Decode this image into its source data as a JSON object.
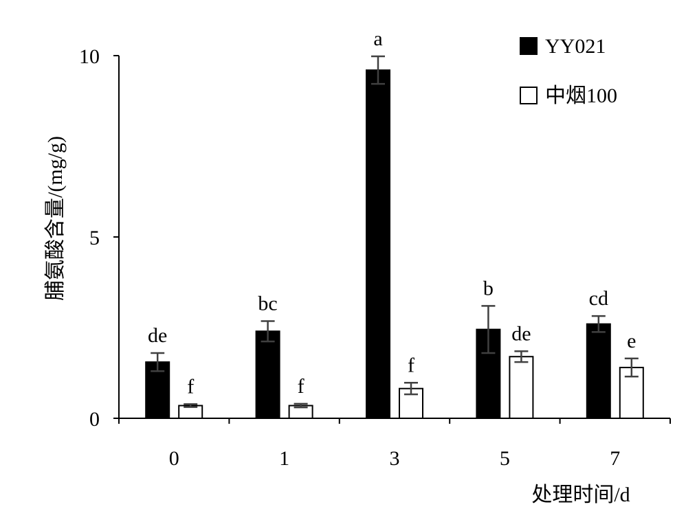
{
  "chart_data": {
    "type": "bar",
    "categories": [
      "0",
      "1",
      "3",
      "5",
      "7"
    ],
    "series": [
      {
        "name": "YY021",
        "color": "#000000",
        "fill": "solid",
        "values": [
          1.55,
          2.4,
          9.6,
          2.45,
          2.6
        ],
        "errors": [
          0.25,
          0.28,
          0.38,
          0.65,
          0.22
        ],
        "significance": [
          "de",
          "bc",
          "a",
          "b",
          "cd"
        ]
      },
      {
        "name": "中烟100",
        "color": "#000000",
        "fill": "open",
        "values": [
          0.35,
          0.35,
          0.82,
          1.7,
          1.4
        ],
        "errors": [
          0.04,
          0.05,
          0.16,
          0.15,
          0.25
        ],
        "significance": [
          "f",
          "f",
          "f",
          "de",
          "e"
        ]
      }
    ],
    "xlabel": "处理时间/d",
    "ylabel": "脯氨酸含量/(mg/g)",
    "ylim": [
      0,
      10
    ],
    "yticks": [
      0,
      5,
      10
    ],
    "ytick_labels": [
      "0",
      "5",
      "10"
    ],
    "grid": false,
    "legend_position": "top-right"
  }
}
